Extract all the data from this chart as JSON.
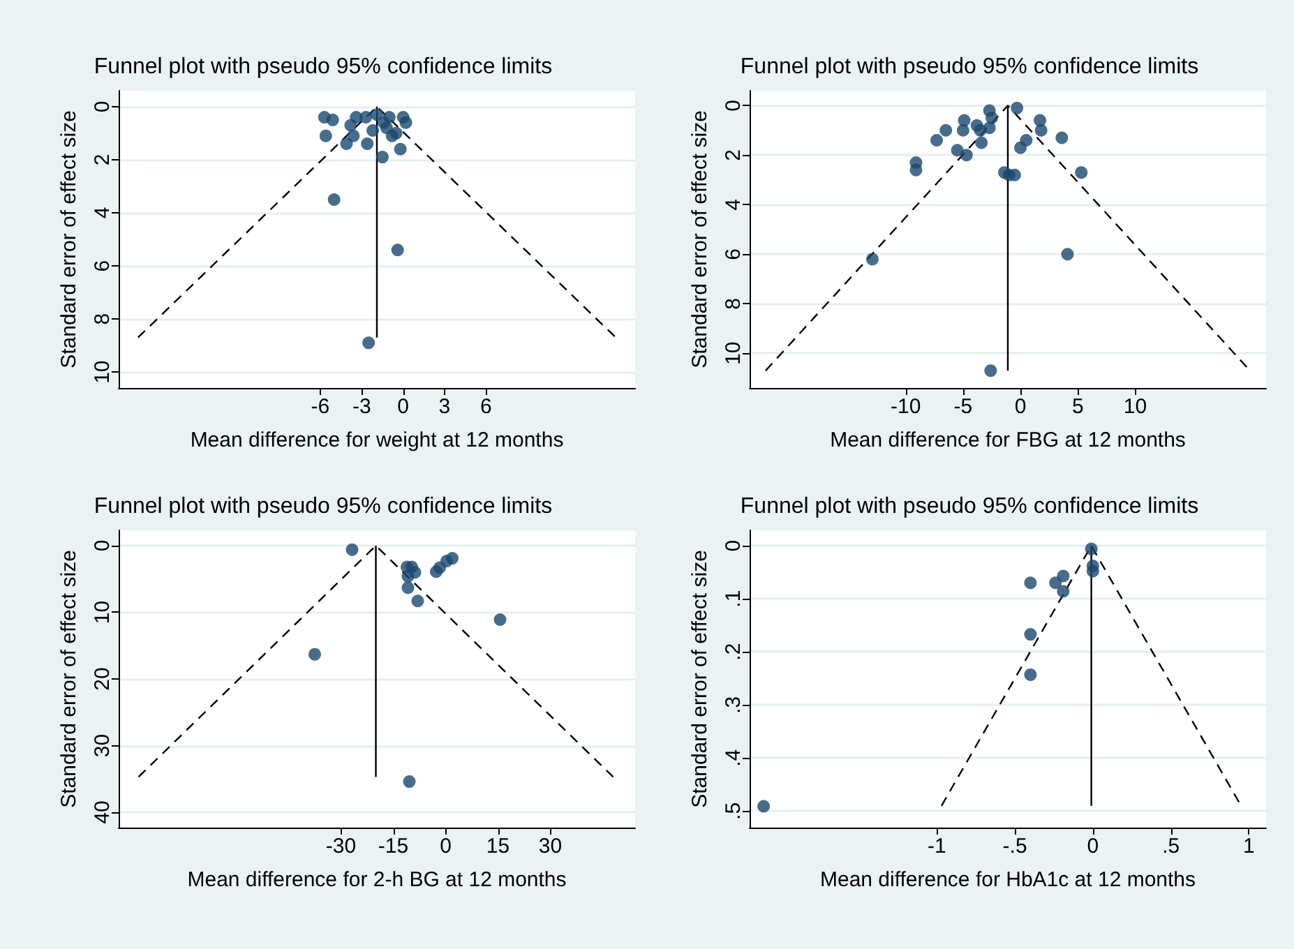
{
  "chart_data": [
    {
      "type": "scatter",
      "title": "Funnel plot with pseudo 95% confidence limits",
      "xlabel": "Mean difference for weight at 12 months",
      "ylabel": "Standard error of effect size",
      "xlim": [
        -20.6,
        16.8
      ],
      "xticks": [
        -6,
        -3,
        0,
        3,
        6
      ],
      "ylim": [
        10.6,
        -0.6
      ],
      "yticks": [
        0,
        2,
        4,
        6,
        8,
        10
      ],
      "grid": "y",
      "series": [
        {
          "marker": "circle",
          "color": "#1a476f",
          "x": [
            -5.7,
            -5.1,
            -5.6,
            -5.0,
            -4.1,
            -3.8,
            -3.4,
            -3.6,
            -2.6,
            -2.5,
            -2.2,
            -1.9,
            -1.5,
            -1.4,
            -1.0,
            -0.8,
            -0.5,
            -0.4,
            -0.2,
            0.0,
            0.2,
            -1.2,
            -2.7
          ],
          "values": [
            0.4,
            0.5,
            1.1,
            3.5,
            1.4,
            0.7,
            0.4,
            1.1,
            1.4,
            8.9,
            0.9,
            0.3,
            1.9,
            0.6,
            0.4,
            1.1,
            1.0,
            5.4,
            1.6,
            0.4,
            0.6,
            0.8,
            0.4
          ]
        },
        {
          "type": "line",
          "color": "#000000",
          "line_style": "dashed",
          "x": [
            -19.2,
            -1.9,
            15.4
          ],
          "values": [
            8.7,
            0,
            8.7
          ]
        },
        {
          "type": "line",
          "color": "#000000",
          "line_style": "solid",
          "x": [
            -1.9,
            -1.9
          ],
          "values": [
            0,
            8.7
          ]
        }
      ]
    },
    {
      "type": "scatter",
      "title": "Funnel plot with pseudo 95% confidence limits",
      "xlabel": "Mean difference for FBG at 12 months",
      "ylabel": "Standard error of effect size",
      "xlim": [
        -23.6,
        21.4
      ],
      "xticks": [
        -10,
        -5,
        0,
        5,
        10
      ],
      "ylim": [
        11.4,
        -0.6
      ],
      "yticks": [
        0,
        2,
        4,
        6,
        8,
        10
      ],
      "grid": "y",
      "series": [
        {
          "marker": "circle",
          "color": "#1a476f",
          "x": [
            -2.7,
            -0.3,
            -2.5,
            -4.9,
            -3.8,
            -6.5,
            -5.0,
            -3.5,
            -2.7,
            -7.3,
            -5.5,
            -3.4,
            -4.7,
            -9.1,
            -9.1,
            -1.4,
            -0.5,
            -1.0,
            0.0,
            0.5,
            1.7,
            1.8,
            3.6,
            5.3,
            -12.9,
            4.1,
            -2.6
          ],
          "values": [
            0.2,
            0.1,
            0.5,
            0.6,
            0.8,
            1.0,
            1.0,
            1.0,
            0.9,
            1.4,
            1.8,
            1.5,
            2.0,
            2.3,
            2.6,
            2.7,
            2.8,
            2.8,
            1.7,
            1.4,
            0.6,
            1.0,
            1.3,
            2.7,
            6.2,
            6.0,
            10.7
          ]
        },
        {
          "type": "line",
          "color": "#000000",
          "line_style": "dashed",
          "x": [
            -22.2,
            -1.1,
            20.0
          ],
          "values": [
            10.7,
            0,
            10.7
          ]
        },
        {
          "type": "line",
          "color": "#000000",
          "line_style": "solid",
          "x": [
            -1.1,
            -1.1
          ],
          "values": [
            0,
            10.7
          ]
        }
      ]
    },
    {
      "type": "scatter",
      "title": "Funnel plot with pseudo 95% confidence limits",
      "xlabel": "Mean difference for 2-h BG at 12 months",
      "ylabel": "Standard error of effect size",
      "xlim": [
        -93.7,
        54.3
      ],
      "xticks": [
        -30,
        -15,
        0,
        15,
        30
      ],
      "ylim": [
        42.3,
        -2.3
      ],
      "yticks": [
        0,
        10,
        20,
        30,
        40
      ],
      "grid": "y",
      "series": [
        {
          "marker": "circle",
          "color": "#1a476f",
          "x": [
            -26.8,
            -37.5,
            -11.1,
            -10.8,
            -10.8,
            -9.7,
            -8.8,
            -8.0,
            -2.7,
            -1.7,
            0.3,
            1.9,
            15.6,
            -10.4
          ],
          "values": [
            0.6,
            16.3,
            3.2,
            4.6,
            6.3,
            3.2,
            4.0,
            8.3,
            3.9,
            3.3,
            2.3,
            1.9,
            11.1,
            35.4
          ]
        },
        {
          "type": "line",
          "color": "#000000",
          "line_style": "dashed",
          "x": [
            -88,
            -20,
            48
          ],
          "values": [
            34.7,
            0,
            34.7
          ]
        },
        {
          "type": "line",
          "color": "#000000",
          "line_style": "solid",
          "x": [
            -20,
            -20
          ],
          "values": [
            0,
            34.7
          ]
        }
      ]
    },
    {
      "type": "scatter",
      "title": "Funnel plot with pseudo 95% confidence limits",
      "xlabel": "Mean difference for HbA1c at 12 months",
      "ylabel": "Standard error of effect size",
      "xlim": [
        -2.2,
        1.11
      ],
      "xticks": [
        -1,
        {
          "value": -0.5,
          "label": "-.5"
        },
        0,
        {
          "value": 0.5,
          "label": ".5"
        },
        1
      ],
      "ylim": [
        0.531,
        -0.029
      ],
      "yticks": [
        0,
        {
          "value": 0.1,
          "label": ".1"
        },
        {
          "value": 0.2,
          "label": ".2"
        },
        {
          "value": 0.3,
          "label": ".3"
        },
        {
          "value": 0.4,
          "label": ".4"
        },
        {
          "value": 0.5,
          "label": ".5"
        }
      ],
      "grid": "y",
      "series": [
        {
          "marker": "circle",
          "color": "#1a476f",
          "x": [
            -0.01,
            0.0,
            0.0,
            -0.4,
            -0.24,
            -0.19,
            -0.19,
            -0.4,
            -0.4,
            -2.11
          ],
          "values": [
            0.006,
            0.038,
            0.048,
            0.07,
            0.07,
            0.057,
            0.086,
            0.167,
            0.243,
            0.491
          ]
        },
        {
          "type": "line",
          "color": "#000000",
          "line_style": "dashed",
          "x": [
            -0.97,
            -0.01,
            0.95
          ],
          "values": [
            0.49,
            0,
            0.49
          ]
        },
        {
          "type": "line",
          "color": "#000000",
          "line_style": "solid",
          "x": [
            -0.01,
            -0.01
          ],
          "values": [
            0,
            0.49
          ]
        }
      ]
    }
  ]
}
